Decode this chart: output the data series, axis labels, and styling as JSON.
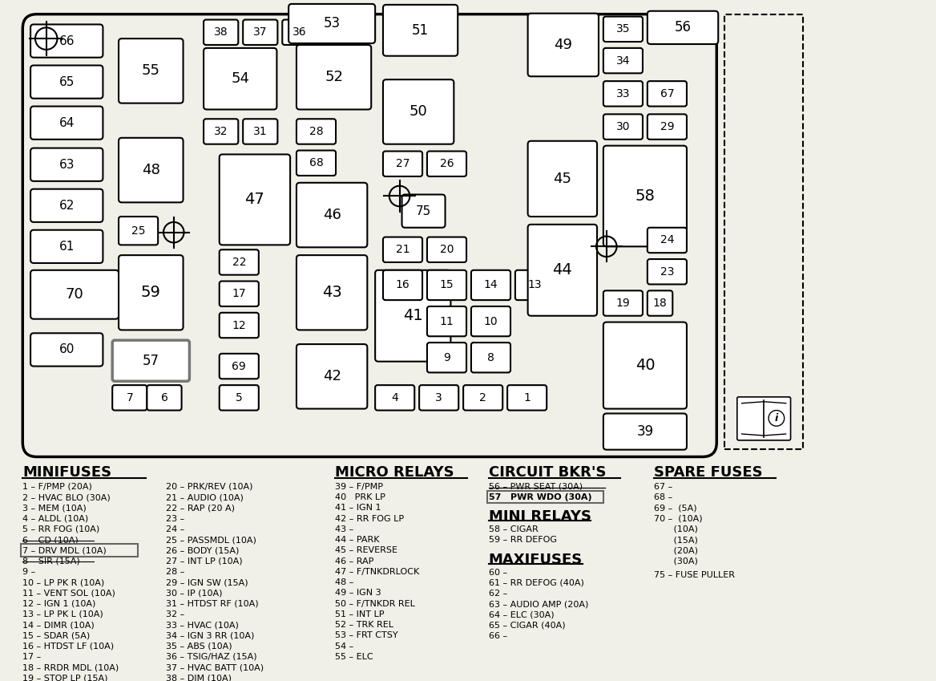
{
  "bg_color": "#f0f0e8",
  "fig_width": 11.68,
  "fig_height": 8.49,
  "minifuses_col1": [
    "1 – F/PMP (20A)",
    "2 – HVAC BLO (30A)",
    "3 – MEM (10A)",
    "4 – ALDL (10A)",
    "5 – RR FOG (10A)",
    "6 – CD (10A)",
    "7 – DRV MDL (10A)",
    "8 – SIR (15A)",
    "9 –",
    "10 – LP PK R (10A)",
    "11 – VENT SOL (10A)",
    "12 – IGN 1 (10A)",
    "13 – LP PK L (10A)",
    "14 – DIMR (10A)",
    "15 – SDAR (5A)",
    "16 – HTDST LF (10A)",
    "17 –",
    "18 – RRDR MDL (10A)",
    "19 – STOP LP (15A)"
  ],
  "minifuses_col2": [
    "20 – PRK/REV (10A)",
    "21 – AUDIO (10A)",
    "22 – RAP (20 A)",
    "23 –",
    "24 –",
    "25 – PASSMDL (10A)",
    "26 – BODY (15A)",
    "27 – INT LP (10A)",
    "28 –",
    "29 – IGN SW (15A)",
    "30 – IP (10A)",
    "31 – HTDST RF (10A)",
    "32 –",
    "33 – HVAC (10A)",
    "34 – IGN 3 RR (10A)",
    "35 – ABS (10A)",
    "36 – TSIG/HAZ (15A)",
    "37 – HVAC BATT (10A)",
    "38 – DIM (10A)"
  ],
  "micro_relays": [
    "39 – F/PMP",
    "40   PRK LP",
    "41 – IGN 1",
    "42 – RR FOG LP",
    "43 –",
    "44 – PARK",
    "45 – REVERSE",
    "46 – RAP",
    "47 – F/TNKDRLOCK",
    "48 –",
    "49 – IGN 3",
    "50 – F/TNKDR REL",
    "51 – INT LP",
    "52 – TRK REL",
    "53 – FRT CTSY",
    "54 –",
    "55 – ELC"
  ],
  "circuit_bkrs_strike": "56 – PWR SEAT (30A)",
  "circuit_bkrs_box": "57   PWR WDO (30A)",
  "mini_relays": [
    "58 – CIGAR",
    "59 – RR DEFOG"
  ],
  "maxifuses": [
    "60 –",
    "61 – RR DEFOG (40A)",
    "62 –",
    "63 – AUDIO AMP (20A)",
    "64 – ELC (30A)",
    "65 – CIGAR (40A)",
    "66 –"
  ],
  "spare_fuses": [
    "67 –",
    "68 –",
    "69 –  (5A)",
    "70 –  (10A)",
    "       (10A)",
    "       (15A)",
    "       (20A)",
    "       (30A)"
  ],
  "spare_extra": "75 – FUSE PULLER"
}
